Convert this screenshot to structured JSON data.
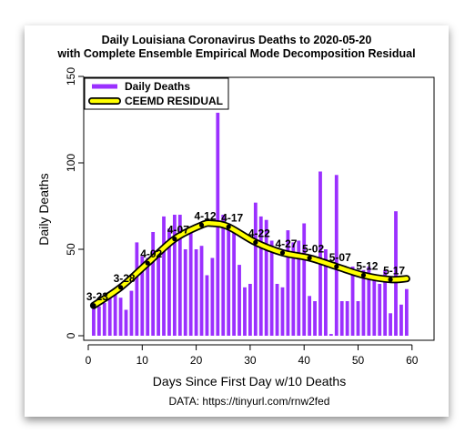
{
  "chart_data": {
    "type": "bar",
    "title": "Daily Louisiana Coronavirus Deaths to 2020-05-20",
    "subtitle": "with Complete Ensemble Empirical Mode Decomposition Residual",
    "xlabel": "Days Since First Day w/10 Deaths",
    "ylabel": "Daily Deaths",
    "note": "DATA: https://tinyurl.com/rnw2fed",
    "xlim": [
      0,
      60
    ],
    "ylim": [
      0,
      150
    ],
    "xticks": [
      0,
      10,
      20,
      30,
      40,
      50,
      60
    ],
    "yticks": [
      0,
      50,
      100,
      150
    ],
    "bar_color": "#9b30ff",
    "line_color": "#ffff00",
    "legend_position": "top-left",
    "legend": [
      {
        "label": "Daily Deaths",
        "kind": "bar",
        "color": "#9b30ff"
      },
      {
        "label": "CEEMD RESIDUAL",
        "kind": "line",
        "color": "#ffff00"
      }
    ],
    "series": [
      {
        "name": "Daily Deaths",
        "kind": "bar",
        "x": [
          1,
          2,
          3,
          4,
          5,
          6,
          7,
          8,
          9,
          10,
          11,
          12,
          13,
          14,
          15,
          16,
          17,
          18,
          19,
          20,
          21,
          22,
          23,
          24,
          25,
          26,
          27,
          28,
          29,
          30,
          31,
          32,
          33,
          34,
          35,
          36,
          37,
          38,
          39,
          40,
          41,
          42,
          43,
          44,
          45,
          46,
          47,
          48,
          49,
          50,
          51,
          52,
          53,
          54,
          55,
          56,
          57,
          58,
          59
        ],
        "values": [
          16,
          17,
          19,
          22,
          27,
          22,
          15,
          26,
          54,
          46,
          45,
          60,
          50,
          69,
          62,
          70,
          70,
          50,
          62,
          50,
          52,
          35,
          45,
          129,
          70,
          65,
          63,
          41,
          28,
          30,
          77,
          69,
          67,
          55,
          30,
          28,
          61,
          54,
          55,
          65,
          23,
          20,
          95,
          50,
          1,
          93,
          20,
          20,
          40,
          20,
          38,
          40,
          35,
          30,
          38,
          13,
          72,
          18,
          27
        ]
      },
      {
        "name": "CEEMD RESIDUAL",
        "kind": "line",
        "x": [
          1,
          6,
          11,
          16,
          21,
          23,
          26,
          31,
          36,
          41,
          46,
          51,
          56,
          59
        ],
        "values": [
          17.5,
          28,
          42,
          56,
          64,
          65,
          63,
          54,
          48,
          45,
          40,
          35,
          32.5,
          33
        ],
        "point_labels": [
          "3-23",
          "3-28",
          "4-02",
          "4-07",
          "4-12",
          "",
          "4-17",
          "4-22",
          "4-27",
          "5-02",
          "5-07",
          "5-12",
          "5-17",
          ""
        ]
      }
    ]
  }
}
